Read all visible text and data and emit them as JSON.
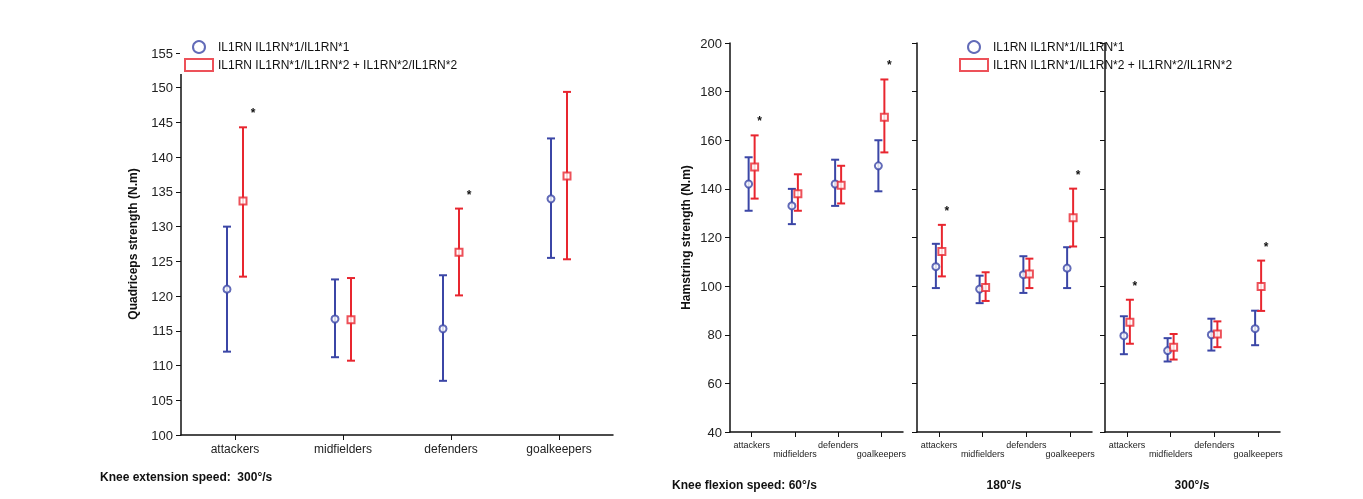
{
  "chart_data": [
    {
      "type": "scatter",
      "ylabel": "Quadriceps strength (N.m)",
      "xlabel": "Knee extension speed:  300°/s",
      "categories": [
        "attackers",
        "midfielders",
        "defenders",
        "goalkeepers"
      ],
      "series": [
        {
          "name": "IL1RN IL1RN*1/IL1RN*1",
          "color": "#3b46a6",
          "marker": "circle",
          "values": [
            121,
            116.7,
            115.3,
            134
          ],
          "errors": [
            [
              112,
              130
            ],
            [
              111.2,
              122.4
            ],
            [
              107.8,
              123
            ],
            [
              125.5,
              142.7
            ]
          ]
        },
        {
          "name": "IL1RN IL1RN*1/IL1RN*2 + IL1RN*2/IL1RN*2",
          "color": "#e8262f",
          "marker": "square",
          "values": [
            133.7,
            116.6,
            126.3,
            137.3
          ],
          "errors": [
            [
              122.8,
              144.3
            ],
            [
              110.7,
              122.6
            ],
            [
              120.1,
              132.6
            ],
            [
              125.3,
              149.4
            ]
          ]
        }
      ],
      "ylim": [
        100,
        155
      ],
      "yticks": [
        100,
        105,
        110,
        115,
        120,
        125,
        130,
        135,
        140,
        145,
        150,
        155
      ],
      "legend": "top left",
      "annotations": [
        {
          "text": "*",
          "x": "attackers",
          "y": 144.3
        },
        {
          "text": "*",
          "x": "defenders",
          "y": 132.6
        }
      ]
    },
    {
      "type": "scatter",
      "ylabel": "Hamstring strength (N.m)",
      "xlabel": "Knee flexion speed: 60°/s",
      "categories": [
        "attackers",
        "midfielders",
        "defenders",
        "goalkeepers"
      ],
      "series": [
        {
          "color": "#3b46a6",
          "marker": "circle",
          "values": [
            142,
            133,
            142,
            149.5
          ],
          "errors": [
            [
              131,
              153
            ],
            [
              125.5,
              140
            ],
            [
              133,
              152
            ],
            [
              139,
              160
            ]
          ]
        },
        {
          "color": "#e8262f",
          "marker": "square",
          "values": [
            149,
            138,
            141.5,
            169.5
          ],
          "errors": [
            [
              136,
              162
            ],
            [
              131,
              146
            ],
            [
              134,
              149.5
            ],
            [
              155,
              185
            ]
          ]
        }
      ],
      "ylim": [
        40,
        200
      ],
      "yticks": [
        40,
        60,
        80,
        100,
        120,
        140,
        160,
        180,
        200
      ],
      "annotations": [
        {
          "text": "*",
          "x": "attackers",
          "y": 162
        },
        {
          "text": "*",
          "x": "goalkeepers",
          "y": 185
        }
      ]
    },
    {
      "type": "scatter",
      "xlabel": "180°/s",
      "categories": [
        "attackers",
        "midfielders",
        "defenders",
        "goalkeepers"
      ],
      "series": [
        {
          "name": "IL1RN IL1RN*1/IL1RN*1",
          "color": "#3b46a6",
          "marker": "circle",
          "values": [
            108,
            98.8,
            104.7,
            107.4
          ],
          "errors": [
            [
              99.2,
              117.4
            ],
            [
              93,
              104.3
            ],
            [
              97.2,
              112.3
            ],
            [
              99.2,
              116
            ]
          ]
        },
        {
          "name": "IL1RN IL1RN*1/IL1RN*2 + IL1RN*2/IL1RN*2",
          "color": "#e8262f",
          "marker": "square",
          "values": [
            114.2,
            99.4,
            105,
            128.1
          ],
          "errors": [
            [
              104,
              125.2
            ],
            [
              93.9,
              105.7
            ],
            [
              99.2,
              111.3
            ],
            [
              116.3,
              140.1
            ]
          ]
        }
      ],
      "ylim": [
        40,
        200
      ],
      "yticks": [
        40,
        60,
        80,
        100,
        120,
        140,
        160,
        180,
        200
      ],
      "tick_labels": "x",
      "legend": "top right",
      "annotations": [
        {
          "text": "*",
          "x": "attackers",
          "y": 125.2
        },
        {
          "text": "*",
          "x": "goalkeepers",
          "y": 140.1
        }
      ]
    },
    {
      "type": "scatter",
      "xlabel": "300°/s",
      "categories": [
        "attackers",
        "midfielders",
        "defenders",
        "goalkeepers"
      ],
      "series": [
        {
          "color": "#3b46a6",
          "marker": "circle",
          "values": [
            79.6,
            73.5,
            80,
            82.5
          ],
          "errors": [
            [
              72,
              87.6
            ],
            [
              69,
              78.6
            ],
            [
              73.5,
              86.6
            ],
            [
              75.7,
              89.9
            ]
          ]
        },
        {
          "color": "#e8262f",
          "marker": "square",
          "values": [
            85.1,
            74.9,
            80.3,
            99.8
          ],
          "errors": [
            [
              76.3,
              94.4
            ],
            [
              69.8,
              80.3
            ],
            [
              74.9,
              85.5
            ],
            [
              89.8,
              110.5
            ]
          ]
        }
      ],
      "ylim": [
        40,
        200
      ],
      "yticks": [
        40,
        60,
        80,
        100,
        120,
        140,
        160,
        180,
        200
      ],
      "tick_labels": "x",
      "annotations": [
        {
          "text": "*",
          "x": "attackers",
          "y": 94.4
        },
        {
          "text": "*",
          "x": "goalkeepers",
          "y": 110.5
        }
      ]
    }
  ]
}
